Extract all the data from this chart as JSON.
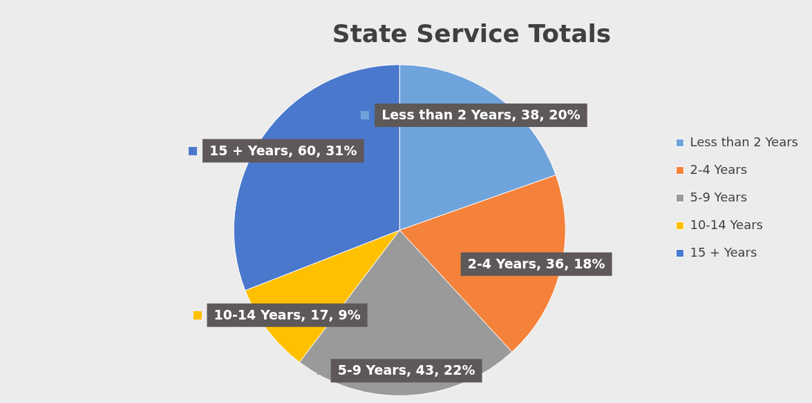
{
  "chart_data": {
    "type": "pie",
    "title": "State Service Totals",
    "categories": [
      "Less than 2 Years",
      "2-4 Years",
      "5-9 Years",
      "10-14 Years",
      "15 + Years"
    ],
    "values": [
      38,
      36,
      43,
      17,
      60
    ],
    "colors": [
      "#6fa3dc",
      "#f5823a",
      "#9a9a9a",
      "#ffc000",
      "#4a78cc"
    ],
    "value_labels": [
      "Less than 2 Years, 38, 20%",
      "2-4 Years, 36, 18%",
      "5-9 Years, 43, 22%",
      "10-14 Years, 17, 9%",
      "15 + Years, 60, 31%"
    ],
    "legend": "right"
  }
}
